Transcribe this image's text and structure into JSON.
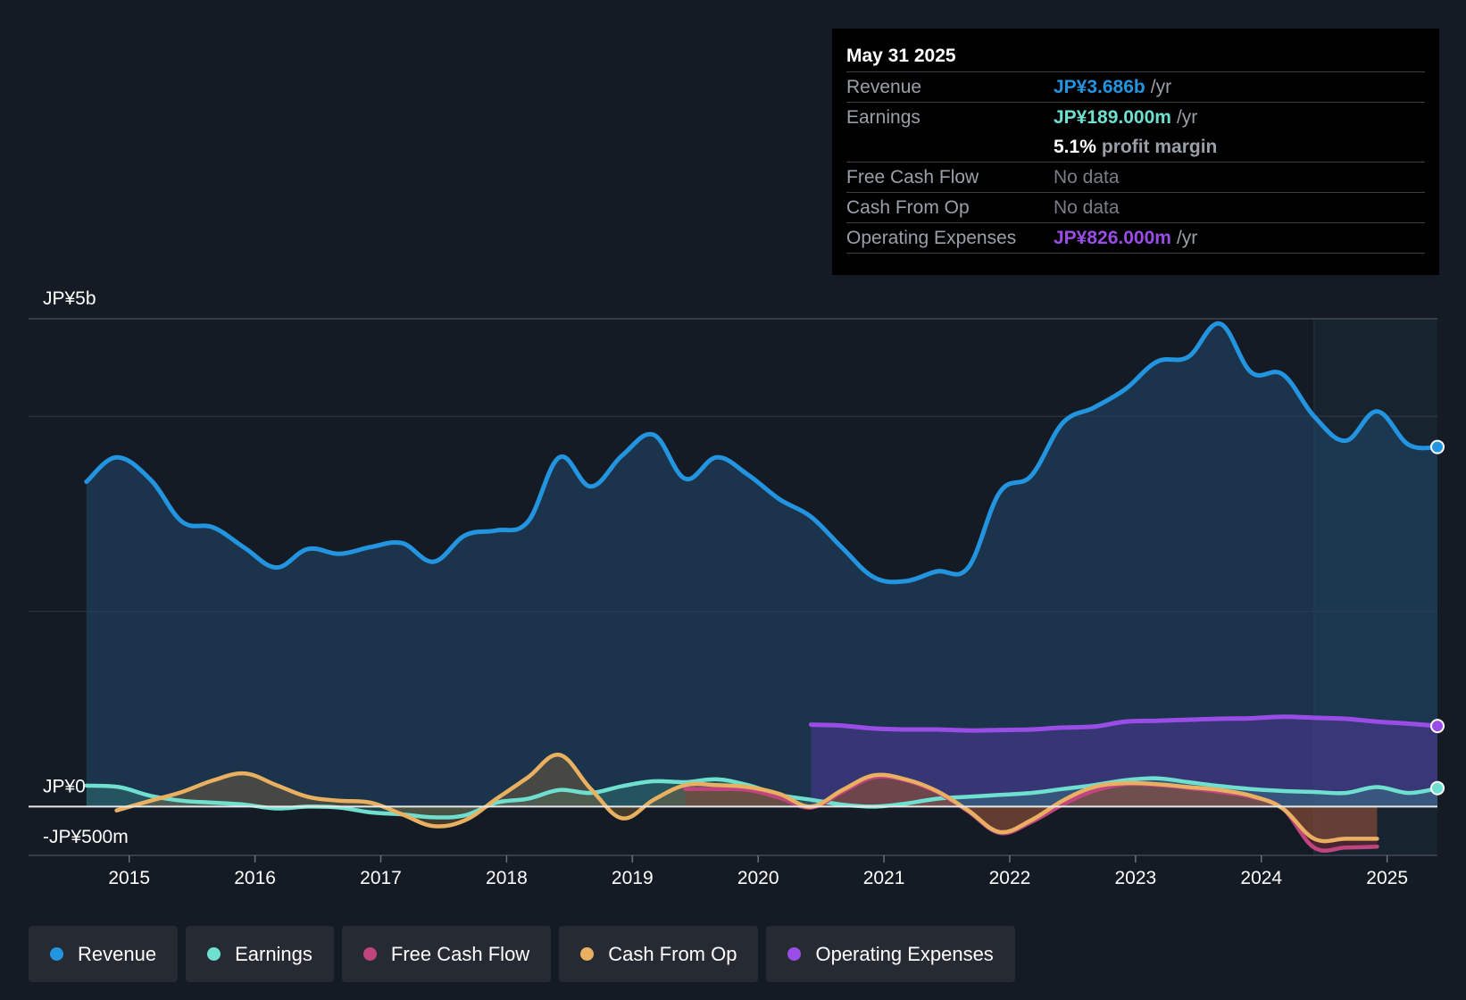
{
  "tooltip": {
    "date": "May 31 2025",
    "rows": {
      "revenue": {
        "label": "Revenue",
        "value": "JP¥3.686b",
        "unit": "/yr"
      },
      "earnings": {
        "label": "Earnings",
        "value": "JP¥189.000m",
        "unit": "/yr"
      },
      "margin": {
        "value": "5.1%",
        "unit": "profit margin"
      },
      "fcf": {
        "label": "Free Cash Flow",
        "value": "No data"
      },
      "cfo": {
        "label": "Cash From Op",
        "value": "No data"
      },
      "opex": {
        "label": "Operating Expenses",
        "value": "JP¥826.000m",
        "unit": "/yr"
      }
    }
  },
  "legend": {
    "revenue": "Revenue",
    "earnings": "Earnings",
    "fcf": "Free Cash Flow",
    "cfo": "Cash From Op",
    "opex": "Operating Expenses"
  },
  "colors": {
    "background": "#151b24",
    "revenue": "#2394df",
    "earnings": "#6fe0d0",
    "fcf": "#c0457f",
    "cfo": "#e8b060",
    "opex": "#9a4de6"
  },
  "chart_data": {
    "type": "line",
    "title": "",
    "y_labels": [
      {
        "text": "JP¥5b",
        "value": 5000
      },
      {
        "text": "JP¥0",
        "value": 0
      },
      {
        "text": "-JP¥500m",
        "value": -500
      }
    ],
    "ylim": [
      -500,
      5000
    ],
    "xlim": [
      2014.2,
      2025.4
    ],
    "x_ticks": [
      2015,
      2016,
      2017,
      2018,
      2019,
      2020,
      2021,
      2022,
      2023,
      2024,
      2025
    ],
    "forecast_start": 2024.42,
    "unit": "JP¥ millions",
    "series": [
      {
        "key": "revenue",
        "name": "Revenue",
        "fill": true,
        "points": [
          [
            2014.66,
            3330
          ],
          [
            2014.9,
            3580
          ],
          [
            2015.17,
            3350
          ],
          [
            2015.42,
            2920
          ],
          [
            2015.67,
            2860
          ],
          [
            2015.92,
            2650
          ],
          [
            2016.17,
            2450
          ],
          [
            2016.42,
            2640
          ],
          [
            2016.67,
            2590
          ],
          [
            2016.92,
            2660
          ],
          [
            2017.17,
            2700
          ],
          [
            2017.42,
            2510
          ],
          [
            2017.67,
            2780
          ],
          [
            2017.92,
            2830
          ],
          [
            2018.17,
            2920
          ],
          [
            2018.42,
            3580
          ],
          [
            2018.67,
            3280
          ],
          [
            2018.92,
            3600
          ],
          [
            2019.17,
            3810
          ],
          [
            2019.42,
            3360
          ],
          [
            2019.67,
            3580
          ],
          [
            2019.92,
            3400
          ],
          [
            2020.17,
            3150
          ],
          [
            2020.42,
            2970
          ],
          [
            2020.67,
            2650
          ],
          [
            2020.92,
            2350
          ],
          [
            2021.17,
            2310
          ],
          [
            2021.42,
            2410
          ],
          [
            2021.67,
            2450
          ],
          [
            2021.92,
            3220
          ],
          [
            2022.17,
            3390
          ],
          [
            2022.42,
            3930
          ],
          [
            2022.67,
            4090
          ],
          [
            2022.92,
            4280
          ],
          [
            2023.17,
            4560
          ],
          [
            2023.42,
            4610
          ],
          [
            2023.67,
            4950
          ],
          [
            2023.92,
            4450
          ],
          [
            2024.17,
            4430
          ],
          [
            2024.42,
            4000
          ],
          [
            2024.67,
            3750
          ],
          [
            2024.92,
            4050
          ],
          [
            2025.17,
            3710
          ],
          [
            2025.41,
            3686
          ]
        ]
      },
      {
        "key": "opex",
        "name": "Operating Expenses",
        "fill": true,
        "points": [
          [
            2020.42,
            840
          ],
          [
            2020.67,
            830
          ],
          [
            2020.92,
            800
          ],
          [
            2021.17,
            790
          ],
          [
            2021.42,
            790
          ],
          [
            2021.67,
            780
          ],
          [
            2021.92,
            785
          ],
          [
            2022.17,
            790
          ],
          [
            2022.42,
            810
          ],
          [
            2022.67,
            820
          ],
          [
            2022.92,
            870
          ],
          [
            2023.17,
            880
          ],
          [
            2023.42,
            890
          ],
          [
            2023.67,
            900
          ],
          [
            2023.92,
            905
          ],
          [
            2024.17,
            920
          ],
          [
            2024.42,
            910
          ],
          [
            2024.67,
            900
          ],
          [
            2024.92,
            870
          ],
          [
            2025.17,
            850
          ],
          [
            2025.41,
            826
          ]
        ]
      },
      {
        "key": "earnings",
        "name": "Earnings",
        "fill": true,
        "points": [
          [
            2014.66,
            215
          ],
          [
            2014.92,
            200
          ],
          [
            2015.17,
            110
          ],
          [
            2015.42,
            60
          ],
          [
            2015.67,
            40
          ],
          [
            2015.92,
            20
          ],
          [
            2016.17,
            -20
          ],
          [
            2016.42,
            0
          ],
          [
            2016.67,
            -10
          ],
          [
            2016.92,
            -60
          ],
          [
            2017.17,
            -80
          ],
          [
            2017.42,
            -110
          ],
          [
            2017.67,
            -90
          ],
          [
            2017.92,
            40
          ],
          [
            2018.17,
            80
          ],
          [
            2018.42,
            170
          ],
          [
            2018.67,
            140
          ],
          [
            2018.92,
            210
          ],
          [
            2019.17,
            260
          ],
          [
            2019.42,
            250
          ],
          [
            2019.67,
            280
          ],
          [
            2019.92,
            220
          ],
          [
            2020.17,
            120
          ],
          [
            2020.42,
            70
          ],
          [
            2020.67,
            20
          ],
          [
            2020.92,
            0
          ],
          [
            2021.17,
            30
          ],
          [
            2021.42,
            80
          ],
          [
            2021.67,
            100
          ],
          [
            2021.92,
            120
          ],
          [
            2022.17,
            140
          ],
          [
            2022.42,
            180
          ],
          [
            2022.67,
            220
          ],
          [
            2022.92,
            270
          ],
          [
            2023.17,
            290
          ],
          [
            2023.42,
            250
          ],
          [
            2023.67,
            210
          ],
          [
            2023.92,
            180
          ],
          [
            2024.17,
            160
          ],
          [
            2024.42,
            150
          ],
          [
            2024.67,
            140
          ],
          [
            2024.92,
            200
          ],
          [
            2025.17,
            140
          ],
          [
            2025.41,
            189
          ]
        ]
      },
      {
        "key": "fcf",
        "name": "Free Cash Flow",
        "fill": true,
        "points": [
          [
            2019.42,
            180
          ],
          [
            2019.67,
            180
          ],
          [
            2019.92,
            170
          ],
          [
            2020.17,
            90
          ],
          [
            2020.42,
            -10
          ],
          [
            2020.67,
            150
          ],
          [
            2020.92,
            300
          ],
          [
            2021.17,
            270
          ],
          [
            2021.42,
            150
          ],
          [
            2021.67,
            -50
          ],
          [
            2021.92,
            -270
          ],
          [
            2022.17,
            -160
          ],
          [
            2022.42,
            20
          ],
          [
            2022.67,
            160
          ],
          [
            2022.92,
            230
          ],
          [
            2023.17,
            220
          ],
          [
            2023.42,
            190
          ],
          [
            2023.67,
            150
          ],
          [
            2023.92,
            100
          ],
          [
            2024.17,
            -20
          ],
          [
            2024.42,
            -420
          ],
          [
            2024.67,
            -420
          ],
          [
            2024.92,
            -410
          ]
        ]
      },
      {
        "key": "cfo",
        "name": "Cash From Op",
        "fill": true,
        "points": [
          [
            2014.9,
            -40
          ],
          [
            2015.17,
            60
          ],
          [
            2015.42,
            150
          ],
          [
            2015.67,
            270
          ],
          [
            2015.92,
            340
          ],
          [
            2016.17,
            220
          ],
          [
            2016.42,
            100
          ],
          [
            2016.67,
            60
          ],
          [
            2016.92,
            40
          ],
          [
            2017.17,
            -80
          ],
          [
            2017.42,
            -200
          ],
          [
            2017.67,
            -140
          ],
          [
            2017.92,
            80
          ],
          [
            2018.17,
            300
          ],
          [
            2018.42,
            530
          ],
          [
            2018.67,
            180
          ],
          [
            2018.92,
            -120
          ],
          [
            2019.17,
            70
          ],
          [
            2019.42,
            220
          ],
          [
            2019.67,
            220
          ],
          [
            2019.92,
            200
          ],
          [
            2020.17,
            130
          ],
          [
            2020.42,
            0
          ],
          [
            2020.67,
            170
          ],
          [
            2020.92,
            320
          ],
          [
            2021.17,
            280
          ],
          [
            2021.42,
            160
          ],
          [
            2021.67,
            -40
          ],
          [
            2021.92,
            -260
          ],
          [
            2022.17,
            -140
          ],
          [
            2022.42,
            60
          ],
          [
            2022.67,
            200
          ],
          [
            2022.92,
            240
          ],
          [
            2023.17,
            230
          ],
          [
            2023.42,
            200
          ],
          [
            2023.67,
            170
          ],
          [
            2023.92,
            110
          ],
          [
            2024.17,
            -20
          ],
          [
            2024.42,
            -330
          ],
          [
            2024.67,
            -330
          ],
          [
            2024.92,
            -330
          ]
        ]
      }
    ]
  }
}
